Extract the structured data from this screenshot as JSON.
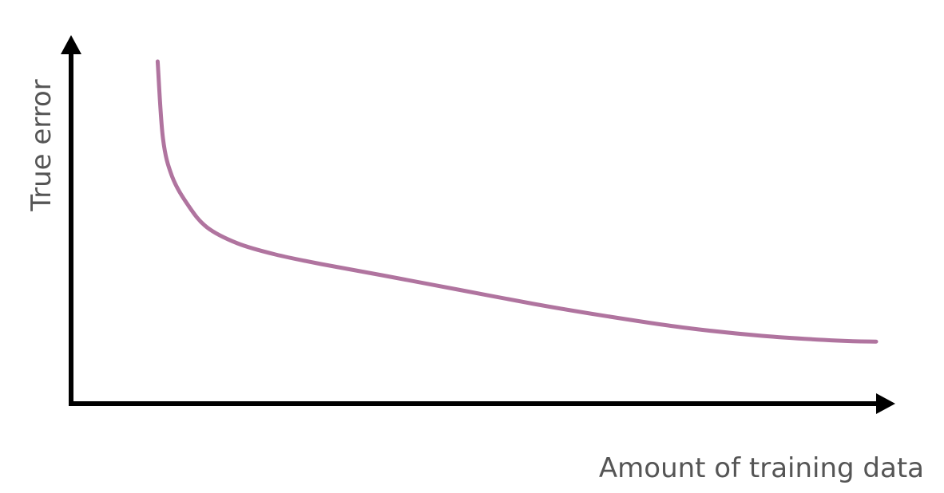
{
  "chart_data": {
    "type": "line",
    "title": "",
    "xlabel": "Amount of training data",
    "ylabel": "True error",
    "xlim": [
      0,
      100
    ],
    "ylim": [
      0,
      100
    ],
    "grid": false,
    "legend": "none",
    "series": [
      {
        "color": "#b0749f",
        "points": [
          [
            5.5,
            100
          ],
          [
            6.2,
            76
          ],
          [
            7.4,
            64
          ],
          [
            9.5,
            55
          ],
          [
            12,
            48
          ],
          [
            16,
            43
          ],
          [
            21,
            39.5
          ],
          [
            27,
            36.5
          ],
          [
            35,
            33
          ],
          [
            45,
            28.5
          ],
          [
            55,
            24
          ],
          [
            65,
            20
          ],
          [
            75,
            16.5
          ],
          [
            85,
            14
          ],
          [
            95,
            12.5
          ],
          [
            100,
            12.2
          ]
        ]
      }
    ]
  },
  "colors": {
    "axis": "#000000",
    "label": "#555555",
    "curve": "#b0749f"
  }
}
